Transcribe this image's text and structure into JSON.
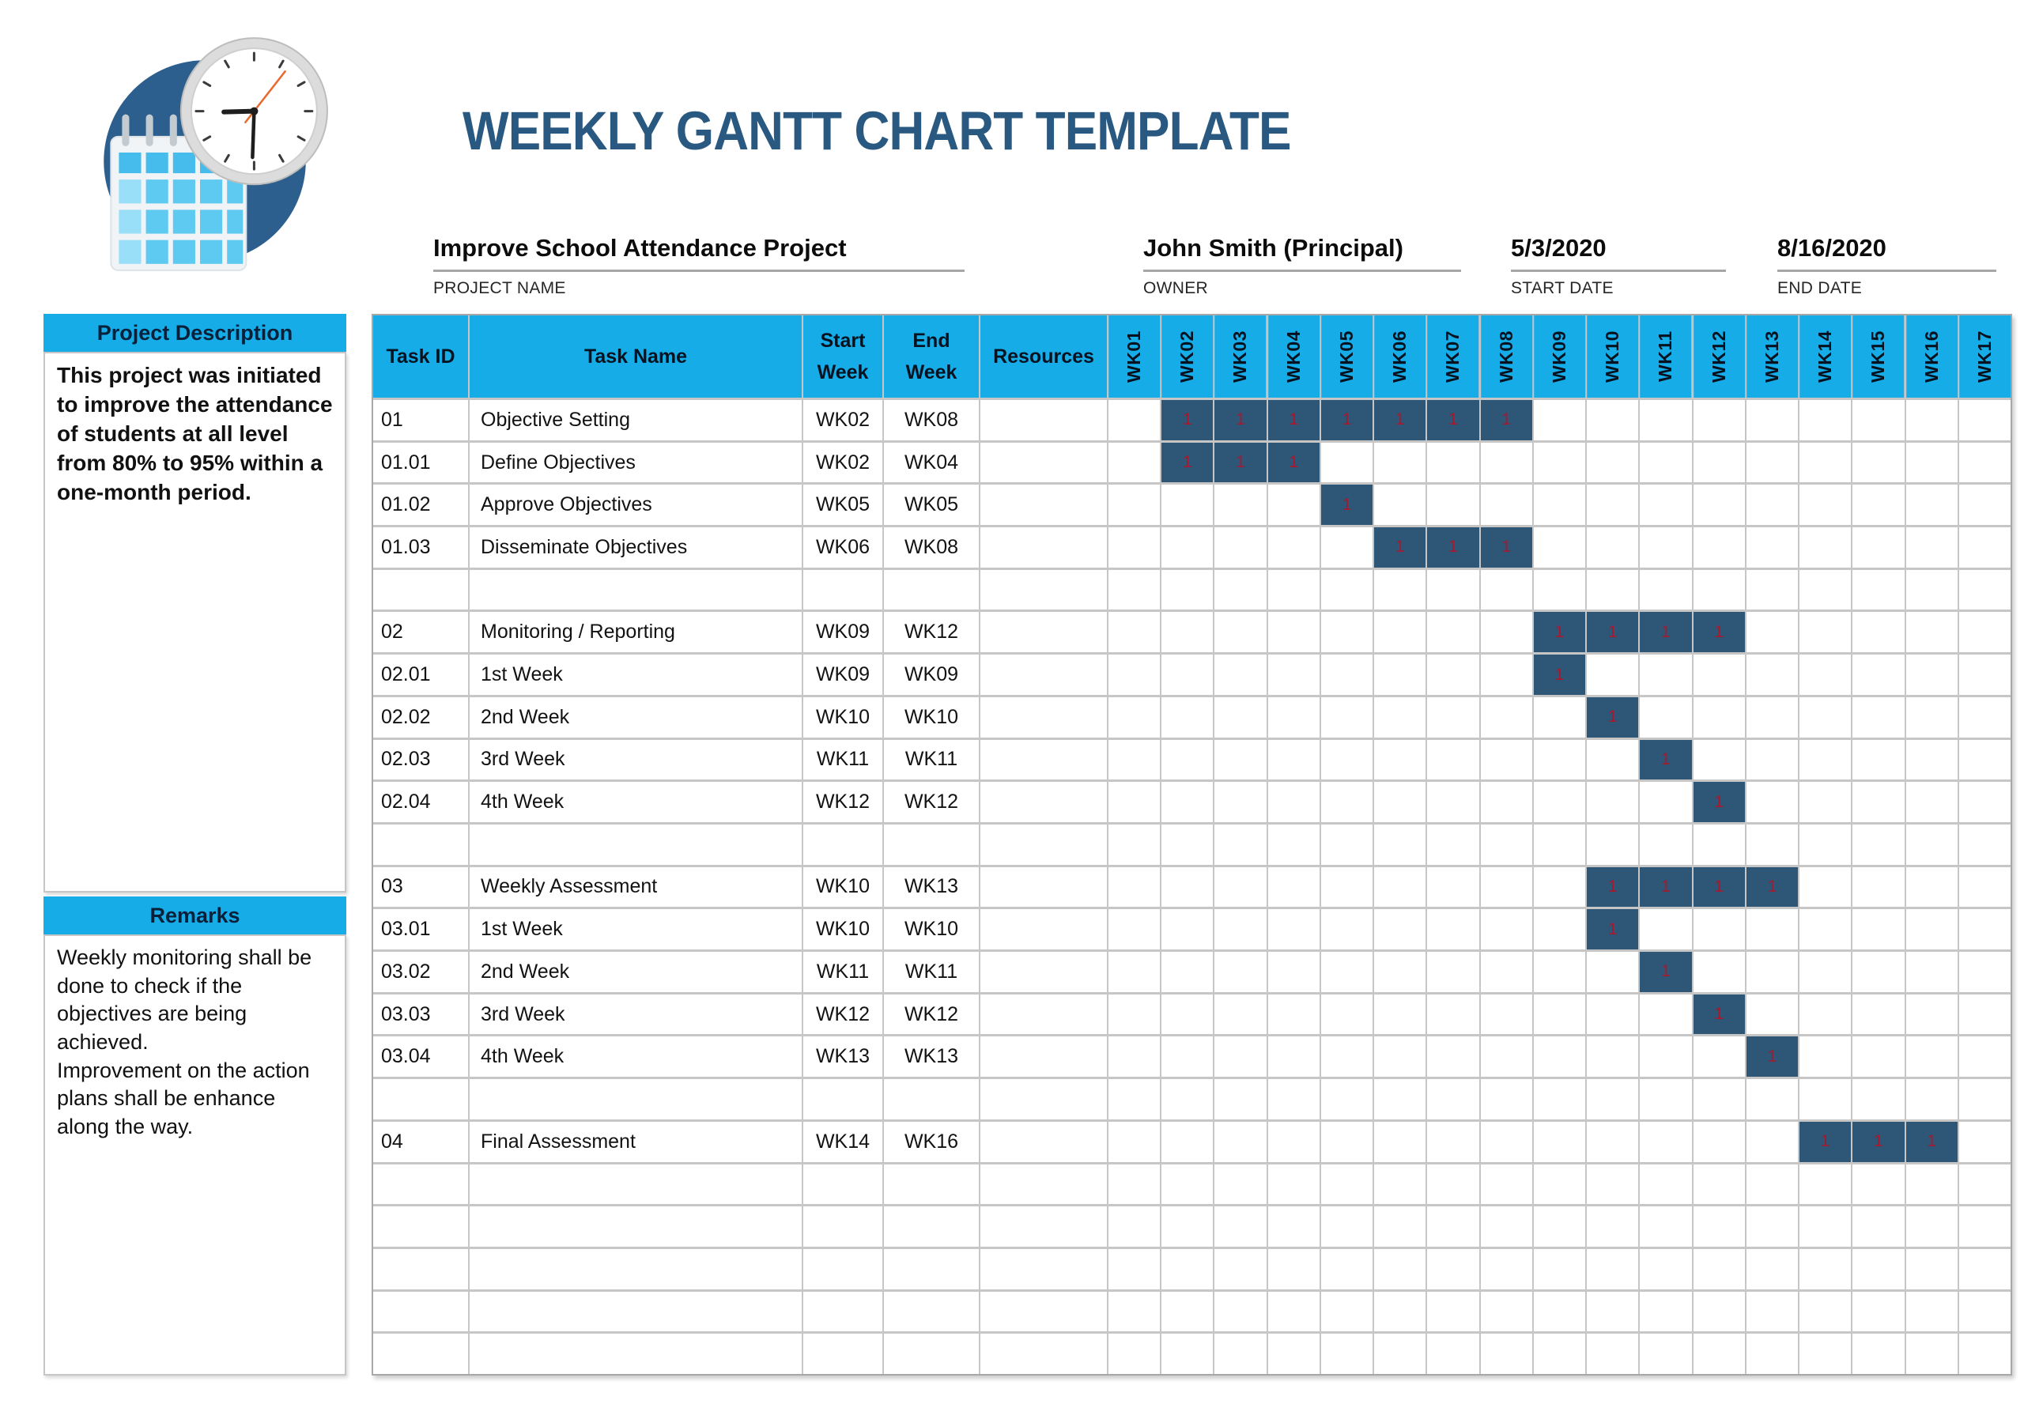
{
  "header": {
    "title": "WEEKLY GANTT CHART TEMPLATE",
    "fields": [
      {
        "key": "project-name",
        "value": "Improve School Attendance Project",
        "label": "PROJECT NAME"
      },
      {
        "key": "owner",
        "value": "John Smith (Principal)",
        "label": "OWNER"
      },
      {
        "key": "start-date",
        "value": "5/3/2020",
        "label": "START DATE"
      },
      {
        "key": "end-date",
        "value": "8/16/2020",
        "label": "END DATE"
      }
    ]
  },
  "logo": {
    "icon": "calendar-clock-logo"
  },
  "sidebar": {
    "description_title": "Project Description",
    "description_text": "This project was initiated to improve the attendance of students at all level from 80% to 95% within a one-month period.",
    "remarks_title": "Remarks",
    "remarks_text": "Weekly monitoring shall be done to check if the objectives are being achieved.\nImprovement on the action plans shall be enhance along the way."
  },
  "table": {
    "info_columns": [
      {
        "key": "task-id",
        "label": "Task ID"
      },
      {
        "key": "task-name",
        "label": "Task Name"
      },
      {
        "key": "start-week",
        "label": "Start\nWeek"
      },
      {
        "key": "end-week",
        "label": "End\nWeek"
      },
      {
        "key": "resources",
        "label": "Resources"
      }
    ],
    "week_columns": [
      "WK01",
      "WK02",
      "WK03",
      "WK04",
      "WK05",
      "WK06",
      "WK07",
      "WK08",
      "WK09",
      "WK10",
      "WK11",
      "WK12",
      "WK13",
      "WK14",
      "WK15",
      "WK16",
      "WK17"
    ],
    "bar_value": "1",
    "rows": [
      {
        "id": "01",
        "name": "Objective Setting",
        "start": "WK02",
        "end": "WK08",
        "resources": "",
        "bar": [
          2,
          8
        ]
      },
      {
        "id": "01.01",
        "name": "Define Objectives",
        "start": "WK02",
        "end": "WK04",
        "resources": "",
        "bar": [
          2,
          4
        ]
      },
      {
        "id": "01.02",
        "name": "Approve Objectives",
        "start": "WK05",
        "end": "WK05",
        "resources": "",
        "bar": [
          5,
          5
        ]
      },
      {
        "id": "01.03",
        "name": "Disseminate Objectives",
        "start": "WK06",
        "end": "WK08",
        "resources": "",
        "bar": [
          6,
          8
        ]
      },
      {
        "id": "",
        "name": "",
        "start": "",
        "end": "",
        "resources": "",
        "bar": null
      },
      {
        "id": "02",
        "name": "Monitoring / Reporting",
        "start": "WK09",
        "end": "WK12",
        "resources": "",
        "bar": [
          9,
          12
        ]
      },
      {
        "id": "02.01",
        "name": "1st Week",
        "start": "WK09",
        "end": "WK09",
        "resources": "",
        "bar": [
          9,
          9
        ]
      },
      {
        "id": "02.02",
        "name": "2nd Week",
        "start": "WK10",
        "end": "WK10",
        "resources": "",
        "bar": [
          10,
          10
        ]
      },
      {
        "id": "02.03",
        "name": "3rd Week",
        "start": "WK11",
        "end": "WK11",
        "resources": "",
        "bar": [
          11,
          11
        ]
      },
      {
        "id": "02.04",
        "name": "4th Week",
        "start": "WK12",
        "end": "WK12",
        "resources": "",
        "bar": [
          12,
          12
        ]
      },
      {
        "id": "",
        "name": "",
        "start": "",
        "end": "",
        "resources": "",
        "bar": null
      },
      {
        "id": "03",
        "name": "Weekly Assessment",
        "start": "WK10",
        "end": "WK13",
        "resources": "",
        "bar": [
          10,
          13
        ]
      },
      {
        "id": "03.01",
        "name": "1st Week",
        "start": "WK10",
        "end": "WK10",
        "resources": "",
        "bar": [
          10,
          10
        ]
      },
      {
        "id": "03.02",
        "name": "2nd Week",
        "start": "WK11",
        "end": "WK11",
        "resources": "",
        "bar": [
          11,
          11
        ]
      },
      {
        "id": "03.03",
        "name": "3rd Week",
        "start": "WK12",
        "end": "WK12",
        "resources": "",
        "bar": [
          12,
          12
        ]
      },
      {
        "id": "03.04",
        "name": "4th Week",
        "start": "WK13",
        "end": "WK13",
        "resources": "",
        "bar": [
          13,
          13
        ]
      },
      {
        "id": "",
        "name": "",
        "start": "",
        "end": "",
        "resources": "",
        "bar": null
      },
      {
        "id": "04",
        "name": "Final Assessment",
        "start": "WK14",
        "end": "WK16",
        "resources": "",
        "bar": [
          14,
          16
        ]
      },
      {
        "id": "",
        "name": "",
        "start": "",
        "end": "",
        "resources": "",
        "bar": null
      },
      {
        "id": "",
        "name": "",
        "start": "",
        "end": "",
        "resources": "",
        "bar": null
      },
      {
        "id": "",
        "name": "",
        "start": "",
        "end": "",
        "resources": "",
        "bar": null
      },
      {
        "id": "",
        "name": "",
        "start": "",
        "end": "",
        "resources": "",
        "bar": null
      },
      {
        "id": "",
        "name": "",
        "start": "",
        "end": "",
        "resources": "",
        "bar": null
      }
    ]
  },
  "colors": {
    "accent_cyan": "#16ACE8",
    "title_blue": "#295880",
    "bar_navy": "#2E5677",
    "bar_value_red": "#A6192E",
    "grid_gray": "#C6C6C6",
    "underline_gray": "#A7A7A7"
  },
  "chart_data": {
    "type": "table",
    "title": "WEEKLY GANTT CHART TEMPLATE",
    "project_name": "Improve School Attendance Project",
    "owner": "John Smith (Principal)",
    "start_date": "5/3/2020",
    "end_date": "8/16/2020",
    "x_categories": [
      "WK01",
      "WK02",
      "WK03",
      "WK04",
      "WK05",
      "WK06",
      "WK07",
      "WK08",
      "WK09",
      "WK10",
      "WK11",
      "WK12",
      "WK13",
      "WK14",
      "WK15",
      "WK16",
      "WK17"
    ],
    "cell_value_shown_in_active_weeks": 1,
    "tasks": [
      {
        "task_id": "01",
        "task_name": "Objective Setting",
        "start_week": "WK02",
        "end_week": "WK08",
        "start_num": 2,
        "end_num": 8,
        "duration_weeks": 7
      },
      {
        "task_id": "01.01",
        "task_name": "Define Objectives",
        "start_week": "WK02",
        "end_week": "WK04",
        "start_num": 2,
        "end_num": 4,
        "duration_weeks": 3
      },
      {
        "task_id": "01.02",
        "task_name": "Approve Objectives",
        "start_week": "WK05",
        "end_week": "WK05",
        "start_num": 5,
        "end_num": 5,
        "duration_weeks": 1
      },
      {
        "task_id": "01.03",
        "task_name": "Disseminate Objectives",
        "start_week": "WK06",
        "end_week": "WK08",
        "start_num": 6,
        "end_num": 8,
        "duration_weeks": 3
      },
      {
        "task_id": "02",
        "task_name": "Monitoring / Reporting",
        "start_week": "WK09",
        "end_week": "WK12",
        "start_num": 9,
        "end_num": 12,
        "duration_weeks": 4
      },
      {
        "task_id": "02.01",
        "task_name": "1st Week",
        "start_week": "WK09",
        "end_week": "WK09",
        "start_num": 9,
        "end_num": 9,
        "duration_weeks": 1
      },
      {
        "task_id": "02.02",
        "task_name": "2nd Week",
        "start_week": "WK10",
        "end_week": "WK10",
        "start_num": 10,
        "end_num": 10,
        "duration_weeks": 1
      },
      {
        "task_id": "02.03",
        "task_name": "3rd Week",
        "start_week": "WK11",
        "end_week": "WK11",
        "start_num": 11,
        "end_num": 11,
        "duration_weeks": 1
      },
      {
        "task_id": "02.04",
        "task_name": "4th Week",
        "start_week": "WK12",
        "end_week": "WK12",
        "start_num": 12,
        "end_num": 12,
        "duration_weeks": 1
      },
      {
        "task_id": "03",
        "task_name": "Weekly Assessment",
        "start_week": "WK10",
        "end_week": "WK13",
        "start_num": 10,
        "end_num": 13,
        "duration_weeks": 4
      },
      {
        "task_id": "03.01",
        "task_name": "1st Week",
        "start_week": "WK10",
        "end_week": "WK10",
        "start_num": 10,
        "end_num": 10,
        "duration_weeks": 1
      },
      {
        "task_id": "03.02",
        "task_name": "2nd Week",
        "start_week": "WK11",
        "end_week": "WK11",
        "start_num": 11,
        "end_num": 11,
        "duration_weeks": 1
      },
      {
        "task_id": "03.03",
        "task_name": "3rd Week",
        "start_week": "WK12",
        "end_week": "WK12",
        "start_num": 12,
        "end_num": 12,
        "duration_weeks": 1
      },
      {
        "task_id": "03.04",
        "task_name": "4th Week",
        "start_week": "WK13",
        "end_week": "WK13",
        "start_num": 13,
        "end_num": 13,
        "duration_weeks": 1
      },
      {
        "task_id": "04",
        "task_name": "Final Assessment",
        "start_week": "WK14",
        "end_week": "WK16",
        "start_num": 14,
        "end_num": 16,
        "duration_weeks": 3
      }
    ]
  }
}
